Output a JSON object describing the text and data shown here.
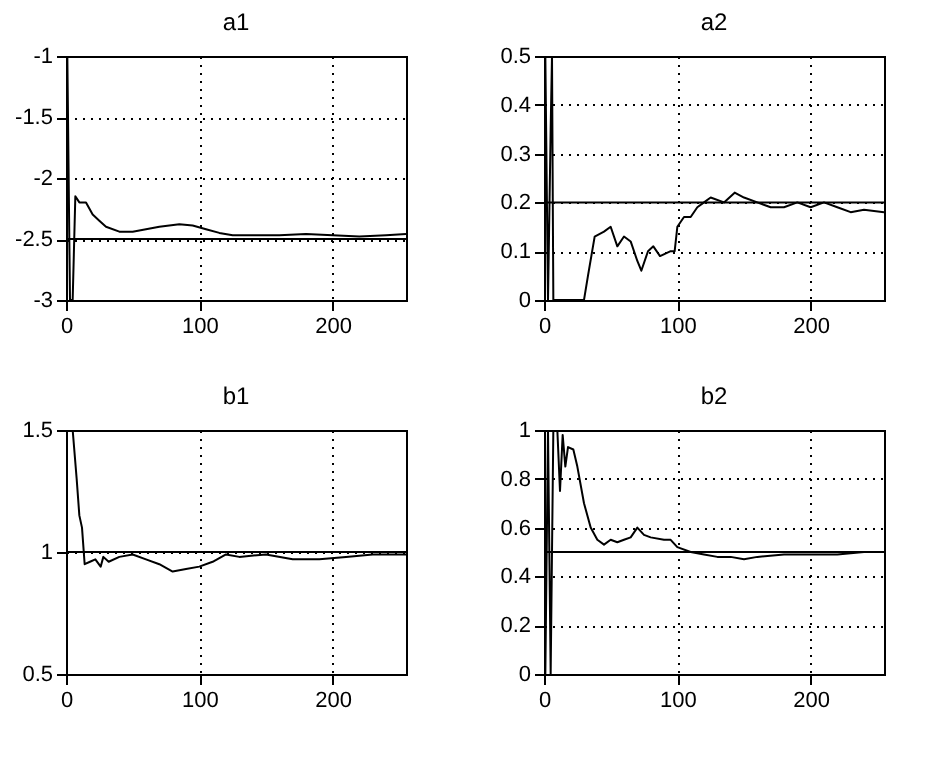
{
  "chart_data": [
    {
      "type": "line",
      "title": "a1",
      "color": "#000000",
      "grid": true,
      "xlim": [
        0,
        255
      ],
      "xticks": [
        0,
        100,
        200
      ],
      "ylim": [
        -3,
        -1
      ],
      "yticks": [
        -3,
        -2.5,
        -2,
        -1.5,
        -1
      ],
      "x": [
        1,
        3,
        5,
        7,
        10,
        15,
        20,
        25,
        30,
        40,
        50,
        60,
        70,
        85,
        95,
        105,
        115,
        125,
        140,
        160,
        180,
        200,
        220,
        240,
        255
      ],
      "values": [
        -1,
        -3,
        -3,
        -2.15,
        -2.2,
        -2.2,
        -2.3,
        -2.35,
        -2.4,
        -2.44,
        -2.44,
        -2.42,
        -2.4,
        -2.38,
        -2.39,
        -2.42,
        -2.45,
        -2.47,
        -2.47,
        -2.47,
        -2.46,
        -2.47,
        -2.48,
        -2.47,
        -2.46
      ],
      "ref_lines": [
        {
          "axis": "y",
          "value": -2.5,
          "color": "#000000"
        }
      ]
    },
    {
      "type": "line",
      "title": "a2",
      "color": "#000000",
      "grid": true,
      "xlim": [
        0,
        255
      ],
      "xticks": [
        0,
        100,
        200
      ],
      "ylim": [
        0,
        0.5
      ],
      "yticks": [
        0,
        0.1,
        0.2,
        0.3,
        0.4,
        0.5
      ],
      "x": [
        1,
        3,
        5,
        6,
        7,
        30,
        33,
        38,
        45,
        50,
        55,
        60,
        65,
        70,
        73,
        78,
        82,
        87,
        95,
        98,
        100,
        105,
        110,
        115,
        120,
        125,
        135,
        143,
        150,
        160,
        170,
        180,
        190,
        200,
        210,
        220,
        230,
        240,
        255
      ],
      "values": [
        0.5,
        0,
        0.35,
        0.5,
        0,
        0,
        0.05,
        0.13,
        0.14,
        0.15,
        0.11,
        0.13,
        0.12,
        0.08,
        0.06,
        0.1,
        0.11,
        0.09,
        0.1,
        0.1,
        0.15,
        0.17,
        0.17,
        0.19,
        0.2,
        0.21,
        0.2,
        0.22,
        0.21,
        0.2,
        0.19,
        0.19,
        0.2,
        0.19,
        0.2,
        0.19,
        0.18,
        0.185,
        0.18
      ],
      "ref_lines": [
        {
          "axis": "y",
          "value": 0.2,
          "color": "#000000"
        }
      ]
    },
    {
      "type": "line",
      "title": "b1",
      "color": "#000000",
      "grid": true,
      "xlim": [
        0,
        255
      ],
      "xticks": [
        0,
        100,
        200
      ],
      "ylim": [
        0.5,
        1.5
      ],
      "yticks": [
        0.5,
        1,
        1.5
      ],
      "x": [
        5,
        8,
        10,
        12,
        14,
        18,
        22,
        26,
        28,
        32,
        40,
        50,
        60,
        70,
        80,
        90,
        100,
        110,
        120,
        130,
        150,
        170,
        190,
        210,
        230,
        255
      ],
      "values": [
        1.5,
        1.3,
        1.15,
        1.1,
        0.95,
        0.96,
        0.97,
        0.94,
        0.98,
        0.96,
        0.98,
        0.99,
        0.97,
        0.95,
        0.92,
        0.93,
        0.94,
        0.96,
        0.99,
        0.98,
        0.99,
        0.97,
        0.97,
        0.98,
        0.99,
        0.99
      ],
      "ref_lines": [
        {
          "axis": "y",
          "value": 1,
          "color": "#000000"
        }
      ]
    },
    {
      "type": "line",
      "title": "b2",
      "color": "#000000",
      "grid": true,
      "xlim": [
        0,
        255
      ],
      "xticks": [
        0,
        100,
        200
      ],
      "ylim": [
        0,
        1
      ],
      "yticks": [
        0,
        0.2,
        0.4,
        0.6,
        0.8,
        1
      ],
      "x": [
        1,
        3,
        5,
        7,
        10,
        12,
        14,
        16,
        18,
        22,
        25,
        30,
        35,
        40,
        45,
        50,
        55,
        60,
        65,
        70,
        75,
        80,
        90,
        95,
        100,
        110,
        120,
        130,
        140,
        150,
        160,
        180,
        200,
        220,
        240,
        255
      ],
      "values": [
        0,
        1,
        0,
        1,
        1,
        0.75,
        0.98,
        0.85,
        0.93,
        0.92,
        0.85,
        0.7,
        0.6,
        0.55,
        0.53,
        0.55,
        0.54,
        0.55,
        0.56,
        0.6,
        0.57,
        0.56,
        0.55,
        0.55,
        0.52,
        0.5,
        0.49,
        0.48,
        0.48,
        0.47,
        0.48,
        0.49,
        0.49,
        0.49,
        0.5,
        0.5
      ],
      "ref_lines": [
        {
          "axis": "y",
          "value": 0.5,
          "color": "#000000"
        }
      ]
    }
  ]
}
